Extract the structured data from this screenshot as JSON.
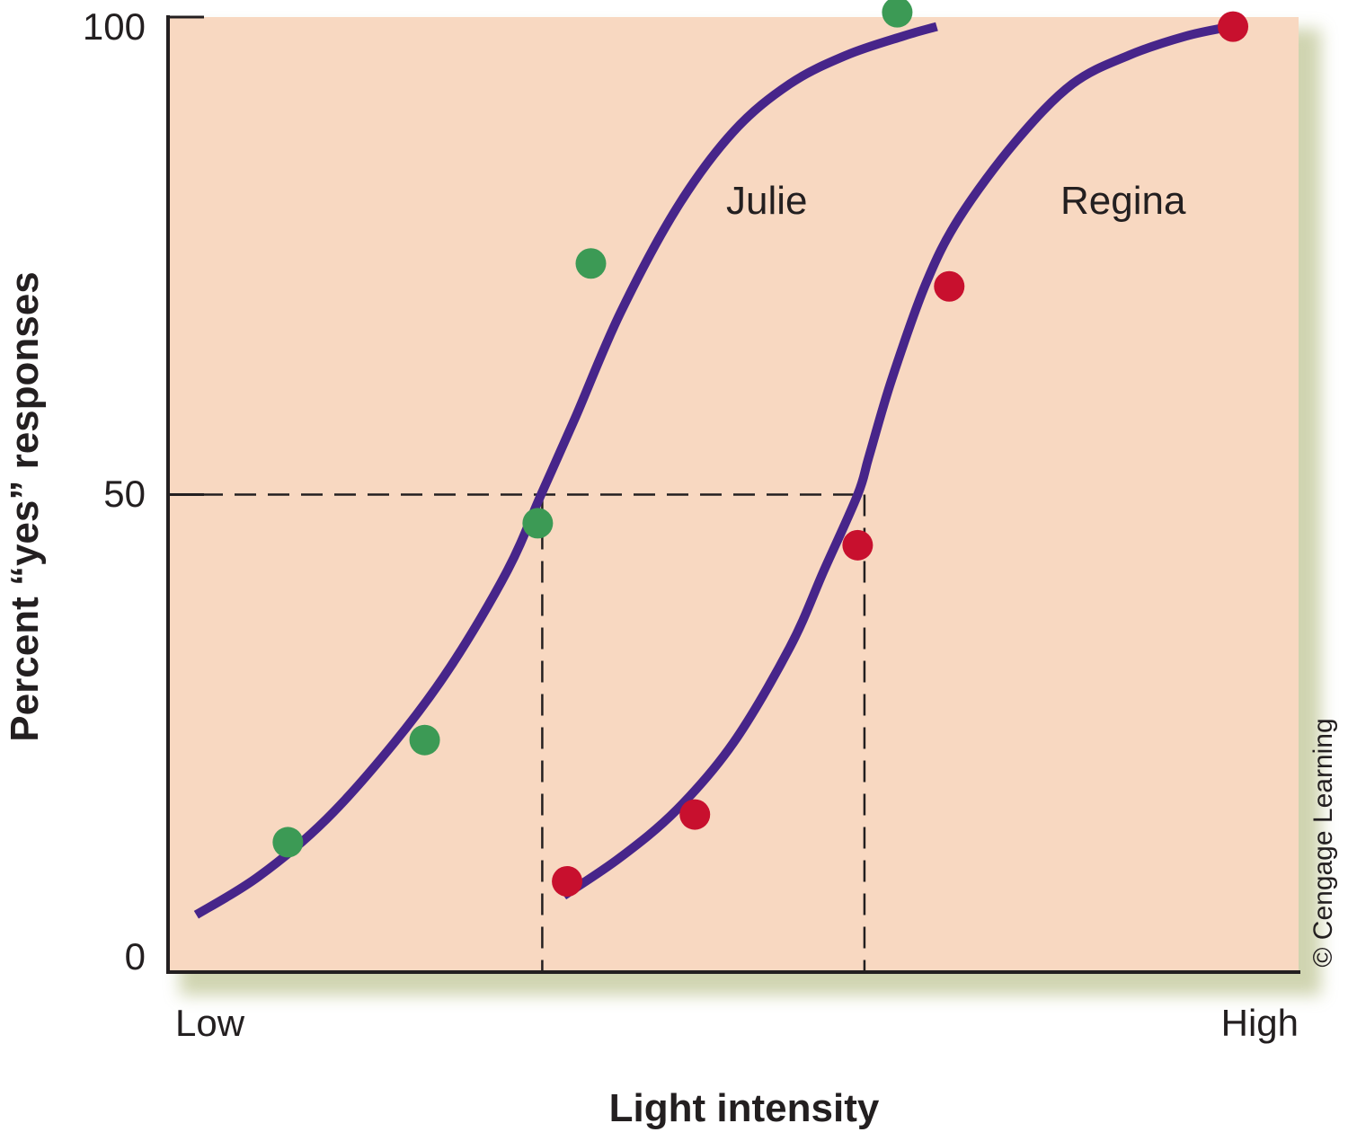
{
  "chart_data": {
    "type": "line",
    "xlabel": "Light intensity",
    "ylabel": "Percent “yes” responses",
    "x_tick_labels": [
      "Low",
      "High"
    ],
    "y_ticks": [
      0,
      50,
      100
    ],
    "y_tick_labels": [
      "0",
      "50",
      "100"
    ],
    "xlim": [
      0,
      100
    ],
    "ylim": [
      0,
      100
    ],
    "grid": false,
    "threshold_level": 50,
    "series": [
      {
        "name": "Julie",
        "color": "#47258a",
        "point_color": "#3c9a55",
        "curve_x": [
          2.5,
          8,
          14,
          20,
          25,
          30,
          33,
          36,
          40,
          45,
          50,
          55,
          60,
          65,
          68
        ],
        "curve_y": [
          6,
          10,
          16,
          24,
          32,
          42,
          50,
          58,
          69,
          80,
          88,
          93,
          96,
          98,
          99
        ],
        "points_x": [
          10.6,
          22.7,
          32.7,
          37.4,
          64.5
        ],
        "points_y": [
          13.6,
          24.3,
          47.0,
          74.2,
          100.5
        ],
        "threshold_x": 33.1
      },
      {
        "name": "Regina",
        "color": "#47258a",
        "point_color": "#c8102e",
        "curve_x": [
          35,
          40,
          45,
          50,
          55,
          58,
          61,
          62,
          64,
          67,
          70,
          75,
          80,
          85,
          90,
          94
        ],
        "curve_y": [
          8,
          12,
          17,
          24,
          34,
          42,
          50,
          54,
          62,
          72,
          79,
          87,
          93,
          96,
          98,
          99
        ],
        "points_x": [
          35.3,
          46.6,
          61.0,
          69.1,
          94.2
        ],
        "points_y": [
          9.5,
          16.5,
          44.7,
          71.8,
          99.0
        ],
        "threshold_x": 61.6
      }
    ]
  },
  "credit": "© Cengage Learning"
}
